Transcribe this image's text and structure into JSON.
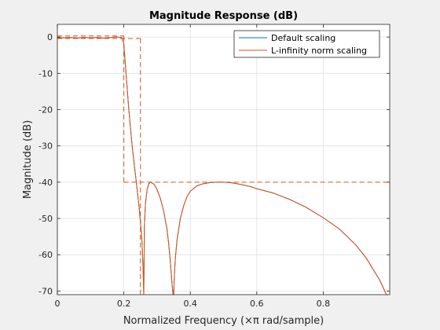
{
  "chart_data": {
    "type": "line",
    "title": "Magnitude Response (dB)",
    "xlabel": "Normalized Frequency (×π rad/sample)",
    "ylabel": "Magnitude (dB)",
    "xlim": [
      0,
      1
    ],
    "ylim": [
      -71,
      3.5
    ],
    "xticks": [
      0,
      0.2,
      0.4,
      0.6,
      0.8
    ],
    "xtick_labels": [
      "0",
      "0.2",
      "0.4",
      "0.6",
      "0.8"
    ],
    "yticks": [
      0,
      -10,
      -20,
      -30,
      -40,
      -50,
      -60,
      -70
    ],
    "ytick_labels": [
      "0",
      "-10",
      "-20",
      "-30",
      "-40",
      "-50",
      "-60",
      "-70"
    ],
    "grid": true,
    "legend_position": "top-right",
    "series": [
      {
        "name": "Default scaling",
        "color": "#0072bd",
        "style": "solid",
        "x": [
          0,
          0.02,
          0.04,
          0.06,
          0.08,
          0.1,
          0.12,
          0.14,
          0.16,
          0.18,
          0.195,
          0.2,
          0.205,
          0.21,
          0.215,
          0.22,
          0.225,
          0.23,
          0.235,
          0.24,
          0.245,
          0.25,
          0.255,
          0.258,
          0.26,
          0.262,
          0.265,
          0.27,
          0.275,
          0.28,
          0.29,
          0.3,
          0.31,
          0.32,
          0.33,
          0.335,
          0.34,
          0.345,
          0.348,
          0.35,
          0.352,
          0.355,
          0.36,
          0.37,
          0.38,
          0.39,
          0.4,
          0.42,
          0.44,
          0.46,
          0.48,
          0.5,
          0.52,
          0.54,
          0.56,
          0.58,
          0.6,
          0.65,
          0.7,
          0.75,
          0.8,
          0.85,
          0.9,
          0.93,
          0.95,
          0.97,
          0.98,
          0.99,
          0.995
        ],
        "y": [
          -0.2,
          -0.2,
          -0.1,
          -0.3,
          -0.1,
          -0.2,
          -0.1,
          -0.3,
          -0.1,
          0,
          -0.2,
          -2,
          -8,
          -14,
          -20,
          -25,
          -30,
          -34,
          -38,
          -42,
          -46,
          -51,
          -57,
          -64,
          -71,
          -52,
          -46,
          -42,
          -40.5,
          -40,
          -40.5,
          -42,
          -44.5,
          -48,
          -53,
          -57,
          -62,
          -68,
          -71,
          -71,
          -66,
          -61,
          -56,
          -50,
          -46.5,
          -44,
          -42.5,
          -41,
          -40.4,
          -40.1,
          -40,
          -40,
          -40.1,
          -40.4,
          -40.8,
          -41.2,
          -41.8,
          -43,
          -44.8,
          -47,
          -49.8,
          -53,
          -57.5,
          -61,
          -64,
          -67,
          -69,
          -71,
          -71
        ]
      },
      {
        "name": "L-infinity norm scaling",
        "color": "#d95319",
        "style": "solid",
        "x": [
          0,
          0.02,
          0.04,
          0.06,
          0.08,
          0.1,
          0.12,
          0.14,
          0.16,
          0.18,
          0.195,
          0.2,
          0.205,
          0.21,
          0.215,
          0.22,
          0.225,
          0.23,
          0.235,
          0.24,
          0.245,
          0.25,
          0.255,
          0.258,
          0.26,
          0.262,
          0.265,
          0.27,
          0.275,
          0.28,
          0.29,
          0.3,
          0.31,
          0.32,
          0.33,
          0.335,
          0.34,
          0.345,
          0.348,
          0.35,
          0.352,
          0.355,
          0.36,
          0.37,
          0.38,
          0.39,
          0.4,
          0.42,
          0.44,
          0.46,
          0.48,
          0.5,
          0.52,
          0.54,
          0.56,
          0.58,
          0.6,
          0.65,
          0.7,
          0.75,
          0.8,
          0.85,
          0.9,
          0.93,
          0.95,
          0.97,
          0.98,
          0.99,
          0.995
        ],
        "y": [
          -0.2,
          -0.2,
          -0.1,
          -0.3,
          -0.1,
          -0.2,
          -0.1,
          -0.3,
          -0.1,
          0,
          -0.2,
          -2,
          -8,
          -14,
          -20,
          -25,
          -30,
          -34,
          -38,
          -42,
          -46,
          -51,
          -57,
          -64,
          -71,
          -52,
          -46,
          -42,
          -40.5,
          -40,
          -40.5,
          -42,
          -44.5,
          -48,
          -53,
          -57,
          -62,
          -68,
          -71,
          -71,
          -66,
          -61,
          -56,
          -50,
          -46.5,
          -44,
          -42.5,
          -41,
          -40.4,
          -40.1,
          -40,
          -40,
          -40.1,
          -40.4,
          -40.8,
          -41.2,
          -41.8,
          -43,
          -44.8,
          -47,
          -49.8,
          -53,
          -57.5,
          -61,
          -64,
          -67,
          -69,
          -71,
          -71
        ]
      }
    ],
    "spec_mask": {
      "color": "#d95319",
      "style": "dashed",
      "segments": [
        {
          "x": [
            0,
            0.2
          ],
          "y": [
            0.3,
            0.3
          ]
        },
        {
          "x": [
            0,
            0.25
          ],
          "y": [
            -0.4,
            -0.4
          ]
        },
        {
          "x": [
            0.2,
            0.2
          ],
          "y": [
            0.3,
            -40
          ]
        },
        {
          "x": [
            0.2,
            1
          ],
          "y": [
            -40,
            -40
          ]
        },
        {
          "x": [
            0.25,
            0.25
          ],
          "y": [
            -0.4,
            -71
          ]
        }
      ]
    }
  }
}
